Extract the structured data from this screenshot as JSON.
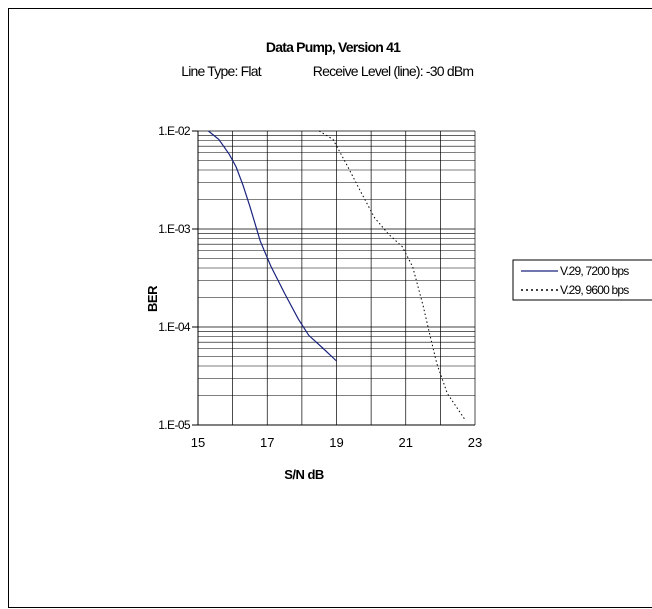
{
  "colors": {
    "series_1": "#1a237e",
    "series_2": "#000000",
    "grid": "#000000",
    "background": "#ffffff"
  },
  "chart_data": {
    "type": "line",
    "title": "Data Pump, Version 41",
    "subtitle_left": "Line Type: Flat",
    "subtitle_right": "Receive Level (line): -30 dBm",
    "xlabel": "S/N dB",
    "ylabel": "BER",
    "xlim": [
      15,
      23
    ],
    "ylim": [
      1e-05,
      0.01
    ],
    "yscale": "log",
    "x_ticks": [
      "15",
      "17",
      "19",
      "21",
      "23"
    ],
    "x_tick_values": [
      15,
      17,
      19,
      21,
      23
    ],
    "y_ticks": [
      "1.E-02",
      "1.E-03",
      "1.E-04",
      "1.E-05"
    ],
    "y_tick_values": [
      0.01,
      0.001,
      0.0001,
      1e-05
    ],
    "grid": true,
    "legend_position": "right",
    "series": [
      {
        "name": "V.29, 7200 bps",
        "style": "solid",
        "x": [
          15.3,
          15.6,
          15.9,
          16.1,
          16.3,
          16.5,
          16.8,
          17.1,
          17.5,
          17.9,
          18.2,
          18.6,
          19.0
        ],
        "y": [
          0.01,
          0.0082,
          0.0058,
          0.0043,
          0.0028,
          0.0017,
          0.00075,
          0.00042,
          0.00022,
          0.00012,
          8.2e-05,
          6.1e-05,
          4.5e-05
        ]
      },
      {
        "name": "V.29, 9600 bps",
        "style": "dotted",
        "x": [
          18.5,
          18.9,
          19.3,
          19.7,
          20.1,
          20.5,
          20.9,
          21.2,
          21.5,
          21.7,
          21.9,
          22.2,
          22.7
        ],
        "y": [
          0.01,
          0.0082,
          0.0045,
          0.0024,
          0.0013,
          0.00089,
          0.00066,
          0.00041,
          0.000165,
          8.2e-05,
          4.2e-05,
          2.1e-05,
          1.15e-05
        ]
      }
    ]
  }
}
